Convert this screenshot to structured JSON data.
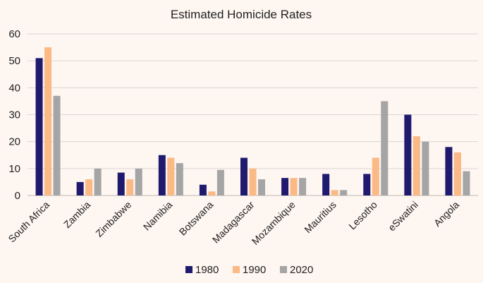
{
  "chart_data": {
    "type": "bar",
    "title": "Estimated Homicide Rates",
    "xlabel": "",
    "ylabel": "",
    "ylim": [
      0,
      60
    ],
    "yticks": [
      0,
      10,
      20,
      30,
      40,
      50,
      60
    ],
    "grid": true,
    "legend_position": "bottom",
    "categories": [
      "South Africa",
      "Zambia",
      "Zimbabwe",
      "Namibia",
      "Botswana",
      "Madagascar",
      "Mozambique",
      "Mauritius",
      "Lesotho",
      "eSwatini",
      "Angola"
    ],
    "series": [
      {
        "name": "1980",
        "color": "#1f1a6e",
        "values": [
          51,
          5,
          8.5,
          15,
          4,
          14,
          6.5,
          8,
          8,
          30,
          18
        ]
      },
      {
        "name": "1990",
        "color": "#fbb985",
        "values": [
          55,
          6,
          6,
          14,
          1.5,
          10,
          6.5,
          2,
          14,
          22,
          16
        ]
      },
      {
        "name": "2020",
        "color": "#a5a5a5",
        "values": [
          37,
          10,
          10,
          12,
          9.5,
          6,
          6.5,
          2,
          35,
          20,
          9
        ]
      }
    ]
  }
}
